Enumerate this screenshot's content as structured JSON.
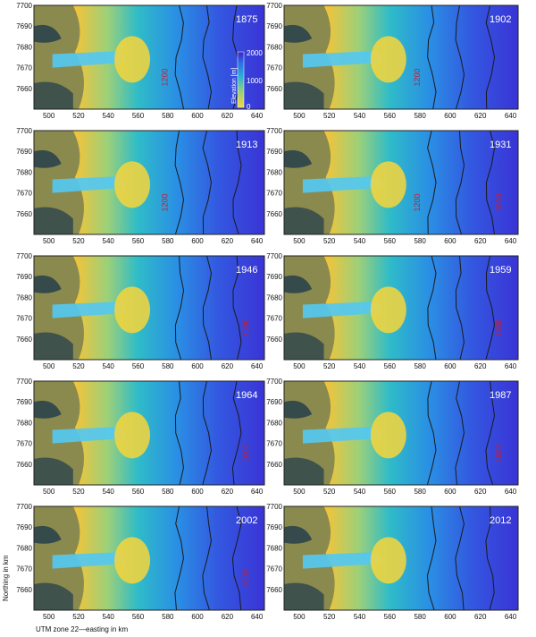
{
  "figure": {
    "x_axis_label": "UTM zone 22—easting in km",
    "y_axis_label": "Northing in km",
    "x_ticks": [
      "500",
      "520",
      "540",
      "560",
      "580",
      "600",
      "620",
      "640"
    ],
    "y_ticks": [
      "7700",
      "7690",
      "7680",
      "7670",
      "7660"
    ],
    "colorbar": {
      "title": "Elevation [m]",
      "ticks": [
        "2000",
        "1000",
        "0"
      ]
    },
    "colors": {
      "high_ice": "#3a34d6",
      "mid_ice": "#2aa6e0",
      "low_ice": "#f6c93a",
      "fjord": "#55c8f0",
      "contour": "#1a1a1a",
      "contour_label": "#c0203a"
    }
  },
  "panels": [
    {
      "year": "1875",
      "contour_labels": [
        "1200"
      ]
    },
    {
      "year": "1902",
      "contour_labels": [
        "1200"
      ]
    },
    {
      "year": "1913",
      "contour_labels": [
        "1200"
      ]
    },
    {
      "year": "1931",
      "contour_labels": [
        "1200",
        "1600"
      ]
    },
    {
      "year": "1946",
      "contour_labels": [
        "1600"
      ]
    },
    {
      "year": "1959",
      "contour_labels": [
        "1600"
      ]
    },
    {
      "year": "1964",
      "contour_labels": [
        "1600"
      ]
    },
    {
      "year": "1987",
      "contour_labels": [
        "1600"
      ]
    },
    {
      "year": "2002",
      "contour_labels": [
        "1600"
      ]
    },
    {
      "year": "2012",
      "contour_labels": []
    }
  ],
  "chart_data": {
    "type": "heatmap",
    "xlabel": "UTM zone 22—easting in km",
    "ylabel": "Northing in km",
    "xlim": [
      490,
      645
    ],
    "ylim": [
      7650,
      7700
    ],
    "colorbar_label": "Elevation [m]",
    "colorbar_range": [
      0,
      2000
    ],
    "panels": [
      "1875",
      "1902",
      "1913",
      "1931",
      "1946",
      "1959",
      "1964",
      "1987",
      "2002",
      "2012"
    ]
  }
}
